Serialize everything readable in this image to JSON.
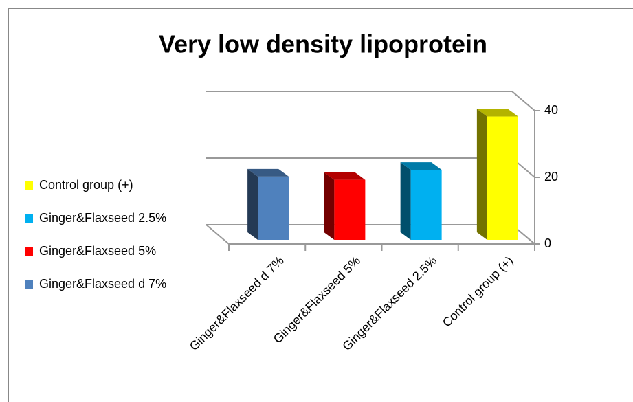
{
  "chart_data": {
    "type": "bar3d",
    "title": "Very low density lipoprotein",
    "categories": [
      "Ginger&Flaxseed d 7%",
      "Ginger&Flaxseed 5%",
      "Ginger&Flaxseed 2.5%",
      "Control group (+)"
    ],
    "values": [
      19,
      18,
      21,
      37
    ],
    "colors": [
      "#4f81bd",
      "#ff0000",
      "#00b0f0",
      "#ffff00"
    ],
    "ylim": [
      0,
      40
    ],
    "yticks": [
      0,
      20,
      40
    ],
    "grid": true,
    "legend": "left"
  }
}
